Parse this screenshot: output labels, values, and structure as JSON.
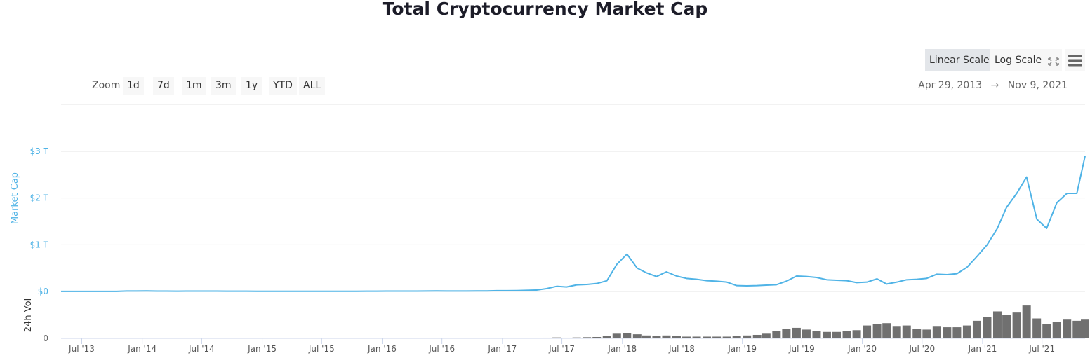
{
  "title": "Total Cryptocurrency Market Cap",
  "toolbar": {
    "zoom_label": "Zoom",
    "zoom_buttons": [
      "1d",
      "7d",
      "1m",
      "3m",
      "1y",
      "YTD",
      "ALL"
    ],
    "linear_scale": "Linear Scale",
    "log_scale": "Log Scale",
    "active_scale": "Linear Scale",
    "range_from": "Apr 29, 2013",
    "range_arrow": "→",
    "range_to": "Nov 9, 2021",
    "fullscreen_icon": "fullscreen-icon",
    "menu_icon": "hamburger-menu-icon"
  },
  "colors": {
    "line": "#4fb3e6",
    "axis_label": "#4fb3e6",
    "volume": "#707070",
    "grid": "#e6e6e6"
  },
  "chart_data": {
    "type": "line",
    "title": "Total Cryptocurrency Market Cap",
    "ylabel": "Market Cap",
    "y_ticks": [
      "$0",
      "$1 T",
      "$2 T",
      "$3 T"
    ],
    "ylim_billion_usd": [
      0,
      3000
    ],
    "volume_ylabel": "24h Vol",
    "volume_y_ticks": [
      "0"
    ],
    "volume_ylim_billion_usd": [
      0,
      400
    ],
    "x_ticks": [
      "Jul '13",
      "Jan '14",
      "Jul '14",
      "Jan '15",
      "Jul '15",
      "Jan '16",
      "Jul '16",
      "Jan '17",
      "Jul '17",
      "Jan '18",
      "Jul '18",
      "Jan '19",
      "Jul '19",
      "Jan '20",
      "Jul '20",
      "Jan '21",
      "Jul '21"
    ],
    "x_start": "2013-04-29",
    "x_end": "2021-11-09",
    "series_start_month": "2013-05",
    "market_cap_billion_usd": [
      1.5,
      1.3,
      1.2,
      1.5,
      1.6,
      2.2,
      10,
      10,
      11,
      8,
      7,
      6,
      7,
      8,
      8,
      7,
      5,
      5,
      5,
      4.5,
      3.5,
      3.5,
      4,
      3.5,
      3.5,
      3.5,
      4.5,
      3.5,
      3.5,
      4.5,
      5.5,
      6.5,
      7,
      7,
      7.5,
      8,
      9,
      11,
      10,
      9.5,
      10,
      11,
      12,
      17,
      17,
      19,
      25,
      30,
      60,
      110,
      95,
      140,
      150,
      170,
      230,
      580,
      800,
      500,
      400,
      320,
      420,
      330,
      280,
      260,
      230,
      220,
      200,
      125,
      120,
      125,
      135,
      145,
      220,
      330,
      320,
      300,
      250,
      240,
      230,
      190,
      200,
      270,
      160,
      200,
      250,
      260,
      280,
      370,
      360,
      380,
      520,
      750,
      1000,
      1350,
      1800,
      2100,
      2450,
      1550,
      1350,
      1900,
      2100,
      2100,
      2900
    ],
    "volume_billion_usd": [
      0,
      0,
      0,
      0,
      0,
      0,
      1,
      1,
      1,
      1,
      1,
      1,
      1,
      1,
      1,
      1,
      1,
      1,
      1,
      1,
      1,
      1,
      1,
      1,
      1,
      1,
      1,
      1,
      1,
      1,
      1,
      1,
      1,
      1,
      1,
      1,
      1,
      1,
      1,
      1,
      1,
      1,
      1,
      2,
      2,
      2,
      3,
      3,
      6,
      8,
      6,
      8,
      10,
      12,
      20,
      40,
      45,
      35,
      25,
      20,
      25,
      20,
      15,
      15,
      15,
      15,
      15,
      20,
      25,
      30,
      40,
      60,
      80,
      90,
      75,
      65,
      55,
      55,
      60,
      70,
      110,
      120,
      130,
      100,
      110,
      80,
      75,
      100,
      95,
      95,
      110,
      150,
      180,
      230,
      200,
      220,
      280,
      170,
      120,
      140,
      160,
      150,
      160
    ]
  }
}
